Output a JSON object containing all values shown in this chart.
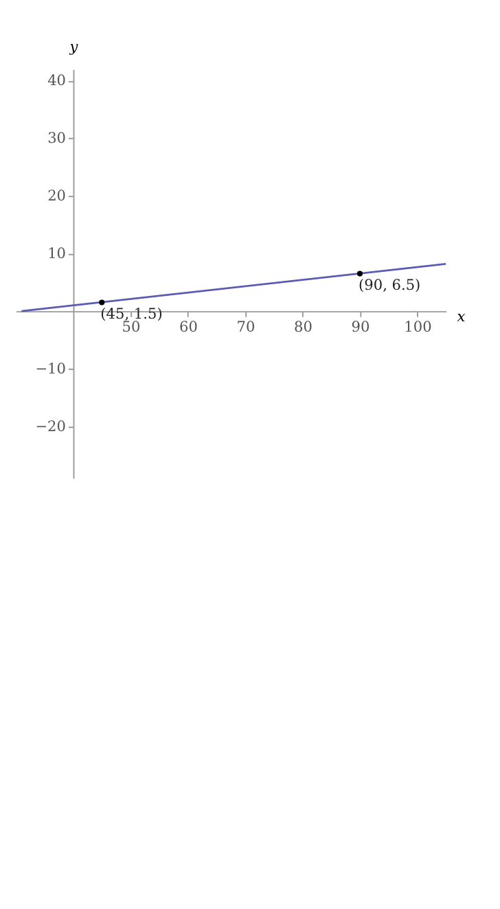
{
  "chart_data": {
    "type": "line",
    "xlabel": "x",
    "ylabel": "y",
    "series": [
      {
        "color": "#5b5bb5",
        "x": [
          31,
          105
        ],
        "values": [
          0,
          8.2
        ]
      },
      {
        "type": "scatter",
        "color": "#000000",
        "x": [
          45,
          90
        ],
        "values": [
          1.5,
          6.5
        ]
      }
    ],
    "annotations": [
      {
        "text": "(45, 1.5)",
        "x": 45,
        "y": 1.5
      },
      {
        "text": "(90, 6.5)",
        "x": 90,
        "y": 6.5
      }
    ],
    "xlim": [
      30,
      105
    ],
    "ylim": [
      -29,
      42
    ],
    "xticks": [
      50,
      60,
      70,
      80,
      90,
      100
    ],
    "yticks": [
      -20,
      -10,
      10,
      20,
      30,
      40
    ]
  }
}
